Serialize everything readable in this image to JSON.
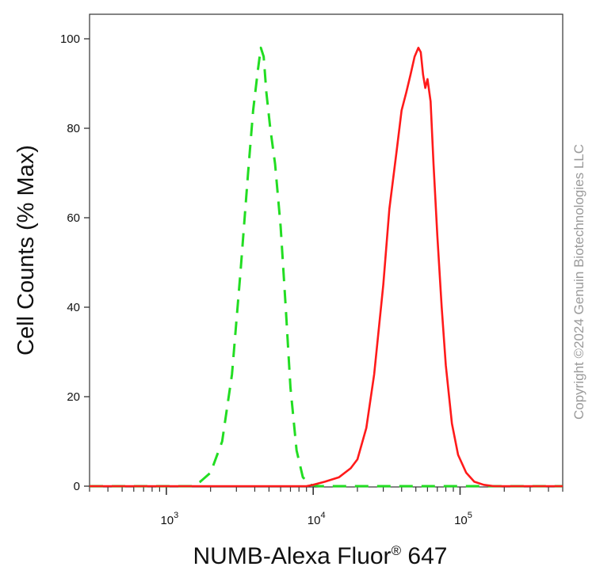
{
  "chart_data": {
    "type": "line",
    "title": "",
    "xlabel": "NUMB-Alexa Fluor",
    "xlabel_superscript": "®",
    "xlabel_suffix": " 647",
    "ylabel": "Cell Counts (% Max)",
    "x_scale": "log",
    "xlim": [
      300,
      500000
    ],
    "ylim": [
      0,
      100
    ],
    "x_ticks": [
      {
        "value": 1000,
        "base": "10",
        "exp": "3"
      },
      {
        "value": 10000,
        "base": "10",
        "exp": "4"
      },
      {
        "value": 100000,
        "base": "10",
        "exp": "5"
      }
    ],
    "y_ticks": [
      0,
      20,
      40,
      60,
      80,
      100
    ],
    "grid": false,
    "series": [
      {
        "color": "#22dd22",
        "dash": "dashed",
        "x": [
          300,
          1500,
          1700,
          2000,
          2400,
          2800,
          3200,
          3600,
          3900,
          4200,
          4400,
          4600,
          4800,
          5100,
          5500,
          6000,
          6500,
          7000,
          7700,
          8500,
          9500,
          11000,
          500000
        ],
        "y": [
          0,
          0,
          1,
          3,
          10,
          25,
          48,
          70,
          84,
          93,
          98,
          96,
          88,
          80,
          72,
          58,
          40,
          22,
          8,
          2,
          0.3,
          0,
          0
        ]
      },
      {
        "color": "#ff1a1a",
        "dash": "solid",
        "x": [
          300,
          9000,
          10000,
          12000,
          15000,
          18000,
          20000,
          23000,
          26000,
          30000,
          33000,
          37000,
          40000,
          43000,
          46000,
          49000,
          52000,
          54000,
          56000,
          58000,
          60000,
          63000,
          66000,
          70000,
          75000,
          80000,
          88000,
          97000,
          110000,
          125000,
          145000,
          170000,
          200000,
          500000
        ],
        "y": [
          0,
          0,
          0.3,
          1,
          2,
          4,
          6,
          13,
          25,
          45,
          62,
          75,
          84,
          88,
          92,
          96,
          98,
          97,
          92,
          89,
          91,
          86,
          72,
          56,
          40,
          27,
          14,
          7,
          3,
          1,
          0.3,
          0,
          0,
          0
        ]
      }
    ]
  },
  "watermark": {
    "text": "Copyright ©2024 Genuin Biotechnologies LLC"
  }
}
